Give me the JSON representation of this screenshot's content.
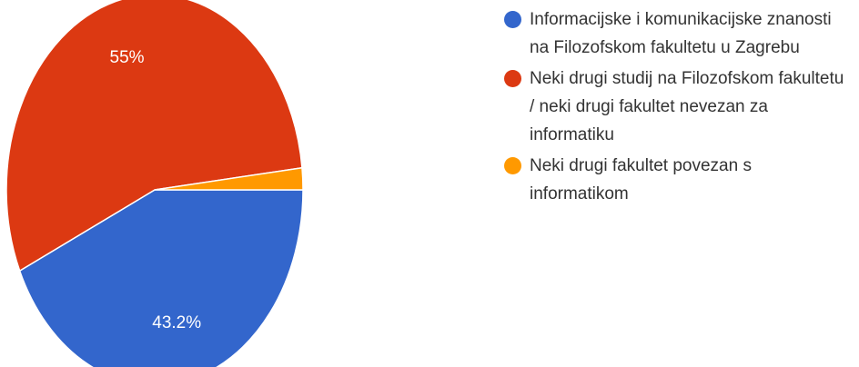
{
  "chart_data": {
    "type": "pie",
    "categories": [
      "Informacijske i komunikacijske znanosti na Filozofskom fakultetu u Zagrebu",
      "Neki drugi studij na Filozofskom fakultetu / neki drugi fakultet nevezan za informatiku",
      "Neki drugi fakultet povezan s informatikom"
    ],
    "values": [
      43.2,
      55,
      1.8
    ],
    "value_labels": [
      "43.2%",
      "55%",
      null
    ],
    "colors": [
      "#3366cc",
      "#dc3912",
      "#ff9900"
    ],
    "legend": "right"
  }
}
